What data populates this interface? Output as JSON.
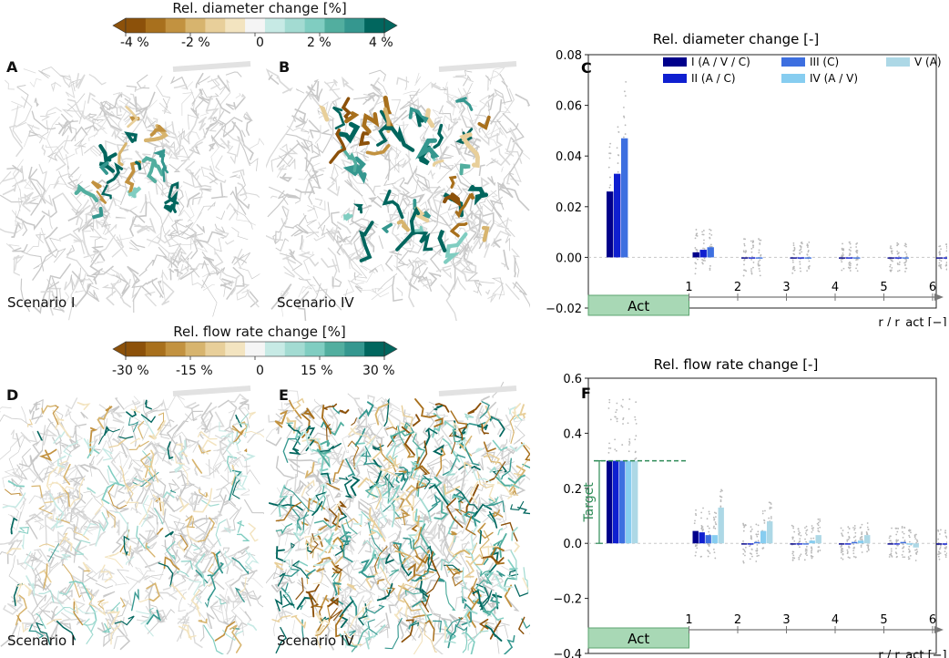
{
  "colorbars": {
    "diameter": {
      "title": "Rel. diameter change [%]",
      "ticks": [
        "-4 %",
        "-2 %",
        "0",
        "2 %",
        "4 %"
      ]
    },
    "flow": {
      "title": "Rel. flow rate change [%]",
      "ticks": [
        "-30 %",
        "-15 %",
        "0",
        "15 %",
        "30 %"
      ]
    }
  },
  "colormap": [
    "#8c510a",
    "#a8701d",
    "#c29240",
    "#d7b46e",
    "#e8cf9a",
    "#f3e4c0",
    "#f5f5f5",
    "#c7eae5",
    "#a3dbd2",
    "#80cdc1",
    "#52ae9f",
    "#35978f",
    "#01665e"
  ],
  "panels": {
    "A": {
      "label": "A",
      "scenario": "Scenario I"
    },
    "B": {
      "label": "B",
      "scenario": "Scenario IV"
    },
    "C": {
      "label": "C"
    },
    "D": {
      "label": "D",
      "scenario": "Scenario I"
    },
    "E": {
      "label": "E",
      "scenario": "Scenario IV"
    },
    "F": {
      "label": "F"
    }
  },
  "legend": [
    {
      "name": "I  (A / V / C)",
      "color": "#00008b"
    },
    {
      "name": "II (A / C)",
      "color": "#0f1fd0"
    },
    {
      "name": "III (C)",
      "color": "#3d6fe0"
    },
    {
      "name": "IV (A / V)",
      "color": "#87cdf0"
    },
    {
      "name": "V (A)",
      "color": "#add8e6"
    }
  ],
  "chart_data": [
    {
      "type": "bar",
      "title": "Rel. diameter change [-]",
      "xlabel": "r / r_act [−]",
      "ylabel": "",
      "ylim": [
        -0.02,
        0.08
      ],
      "yticks": [
        "0.08",
        "0.06",
        "0.04",
        "0.02",
        "0.00",
        "−0.02"
      ],
      "xtick_labels": [
        "1",
        "2",
        "3",
        "4",
        "5",
        "6"
      ],
      "act_label": "Act",
      "categories": [
        "Act",
        "1",
        "2",
        "3",
        "4",
        "5",
        "6"
      ],
      "series": [
        {
          "name": "I  (A / V / C)",
          "values": [
            0.026,
            0.002,
            0.0,
            0.0,
            0.0,
            0.0,
            0.0
          ]
        },
        {
          "name": "II (A / C)",
          "values": [
            0.033,
            0.003,
            0.0,
            0.0,
            0.0,
            0.0,
            0.0
          ]
        },
        {
          "name": "III (C)",
          "values": [
            0.047,
            0.004,
            0.0,
            0.0,
            0.0,
            0.0,
            0.0
          ]
        }
      ]
    },
    {
      "type": "bar",
      "title": "Rel. flow rate change [-]",
      "xlabel": "r / r_act [−]",
      "ylabel": "",
      "ylim": [
        -0.4,
        0.6
      ],
      "yticks": [
        "0.6",
        "0.4",
        "0.2",
        "0.0",
        "−0.2",
        "−0.4"
      ],
      "xtick_labels": [
        "1",
        "2",
        "3",
        "4",
        "5",
        "6"
      ],
      "act_label": "Act",
      "target_label": "Target",
      "target_value": 0.3,
      "categories": [
        "Act",
        "1",
        "2",
        "3",
        "4",
        "5",
        "6"
      ],
      "series": [
        {
          "name": "I  (A / V / C)",
          "values": [
            0.3,
            0.045,
            0.0,
            0.0,
            0.0,
            0.0,
            -0.005
          ]
        },
        {
          "name": "II (A / C)",
          "values": [
            0.3,
            0.04,
            0.0,
            0.0,
            0.0,
            0.0,
            -0.005
          ]
        },
        {
          "name": "III (C)",
          "values": [
            0.3,
            0.03,
            0.005,
            0.0,
            0.005,
            0.005,
            -0.005
          ]
        },
        {
          "name": "IV (A / V)",
          "values": [
            0.3,
            0.03,
            0.045,
            0.01,
            0.01,
            0.0,
            -0.01
          ]
        },
        {
          "name": "V (A)",
          "values": [
            0.3,
            0.13,
            0.08,
            0.03,
            0.03,
            -0.015,
            -0.015
          ]
        }
      ]
    }
  ]
}
